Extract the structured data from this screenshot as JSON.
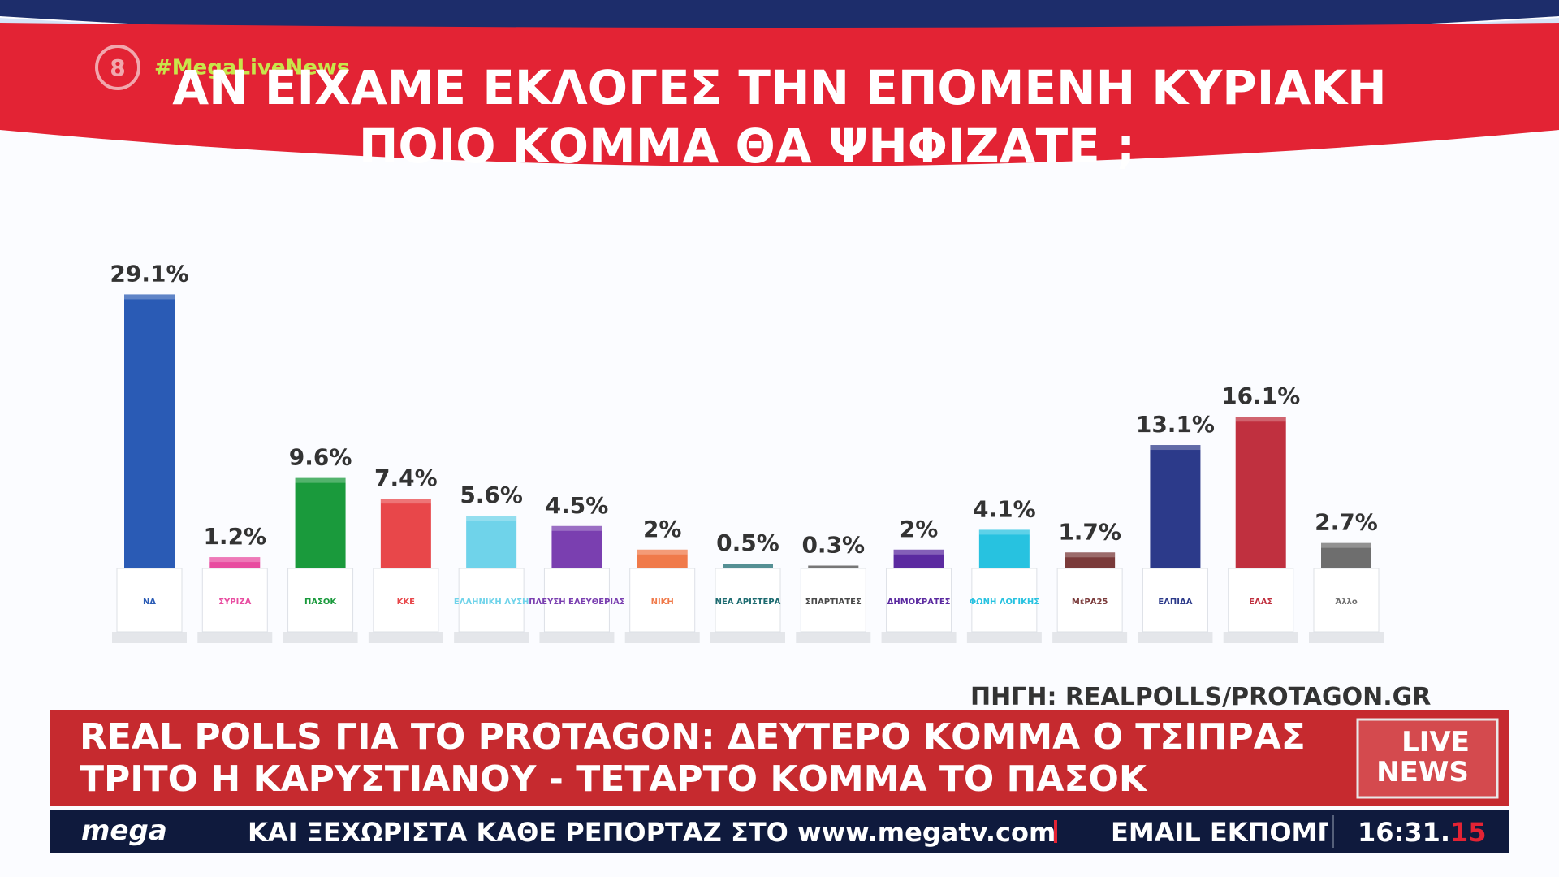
{
  "header": {
    "channel": "8",
    "hashtag": "#MegaLiveNews"
  },
  "chart_data": {
    "type": "bar",
    "title": "ΑΝ ΕΙΧΑΜΕ ΕΚΛΟΓΕΣ ΤΗΝ ΕΠΟΜΕΝΗ ΚΥΡΙΑΚΗ",
    "subtitle": "ΠΟΙΟ ΚΟΜΜΑ ΘΑ ΨΗΦΙΖΑΤΕ ;",
    "categories": [
      "ΝΔ",
      "ΣΥΡΙΖΑ",
      "ΠΑΣΟΚ",
      "ΚΚΕ",
      "ΕΛΛΗΝΙΚΗ ΛΥΣΗ",
      "ΠΛΕΥΣΗ ΕΛΕΥΘΕΡΙΑΣ",
      "ΝΙΚΗ",
      "ΝΕΑ ΑΡΙΣΤΕΡΑ",
      "ΣΠΑΡΤΙΑΤΕΣ",
      "ΔΗΜΟΚΡΑΤΕΣ",
      "ΦΩΝΗ ΛΟΓΙΚΗΣ",
      "ΜέΡΑ25",
      "ΕΛΠΙΔΑ",
      "ΕΛΑΣ",
      "Άλλο"
    ],
    "values": [
      29.1,
      1.2,
      9.6,
      7.4,
      5.6,
      4.5,
      2,
      0.5,
      0.3,
      2,
      4.1,
      1.7,
      13.1,
      16.1,
      2.7
    ],
    "value_labels": [
      "29.1%",
      "1.2%",
      "9.6%",
      "7.4%",
      "5.6%",
      "4.5%",
      "2%",
      "0.5%",
      "0.3%",
      "2%",
      "4.1%",
      "1.7%",
      "13.1%",
      "16.1%",
      "2.7%"
    ],
    "colors": [
      "#2a5bb5",
      "#e84ca0",
      "#1a9a3c",
      "#e8474a",
      "#6fd3ea",
      "#7a3fb0",
      "#f07a4a",
      "#1d6b70",
      "#4a4a4a",
      "#5b2aa0",
      "#27c2e0",
      "#7a3a3a",
      "#2c3a8a",
      "#c0303f",
      "#6e6e6e"
    ],
    "source": "ΠΗΓΗ: REALPOLLS/PROTAGON.GR"
  },
  "lower_third": {
    "headline": [
      "REAL POLLS ΓΙΑ ΤΟ PROTAGON: ΔΕΥΤΕΡΟ ΚΟΜΜΑ Ο ΤΣΙΠΡΑΣ",
      "ΤΡΙΤΟ Η ΚΑΡΥΣΤΙΑΝΟΥ - ΤΕΤΑΡΤΟ ΚΟΜΜΑ ΤΟ ΠΑΣΟΚ"
    ],
    "badge": [
      "LIVE",
      "NEWS"
    ]
  },
  "ticker": {
    "logo": "mega",
    "text": "ΚΑΙ ΞΕΧΩΡΙΣΤΑ ΚΑΘΕ ΡΕΠΟΡΤΑΖ ΣΤΟ www.megatv.com",
    "email": "EMAIL ΕΚΠΟΜΠ",
    "time": "16:31.",
    "seconds": "15"
  }
}
